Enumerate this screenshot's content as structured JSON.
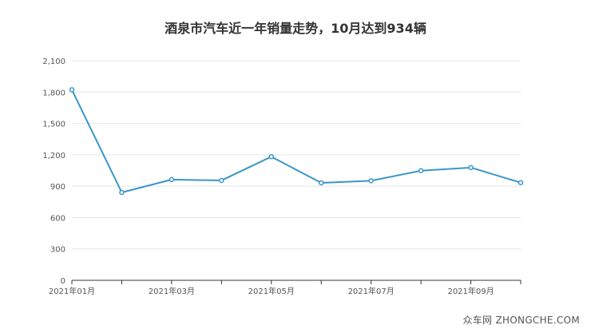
{
  "title": "酒泉市汽车近一年销量走势，10月达到934辆",
  "watermark": "众车网 ZHONGCHE.COM",
  "colors": {
    "line": "#3a96c9",
    "grid": "#e6e6e6",
    "axis": "#333333",
    "tick_text": "#555555"
  },
  "chart_data": {
    "type": "line",
    "title": "酒泉市汽车近一年销量走势，10月达到934辆",
    "xlabel": "",
    "ylabel": "",
    "x": [
      "2021年01月",
      "2021年02月",
      "2021年03月",
      "2021年04月",
      "2021年05月",
      "2021年06月",
      "2021年07月",
      "2021年08月",
      "2021年09月",
      "2021年10月"
    ],
    "x_tick_labels": [
      "2021年01月",
      "2021年03月",
      "2021年05月",
      "2021年07月",
      "2021年09月"
    ],
    "series": [
      {
        "values": [
          1822,
          840,
          963,
          955,
          1182,
          932,
          952,
          1048,
          1078,
          934
        ]
      }
    ],
    "ylim": [
      0,
      2100
    ],
    "y_ticks": [
      0,
      300,
      600,
      900,
      1200,
      1500,
      1800,
      2100
    ],
    "y_tick_labels": [
      "0",
      "300",
      "600",
      "900",
      "1,200",
      "1,500",
      "1,800",
      "2,100"
    ],
    "grid": true,
    "legend": "none"
  }
}
